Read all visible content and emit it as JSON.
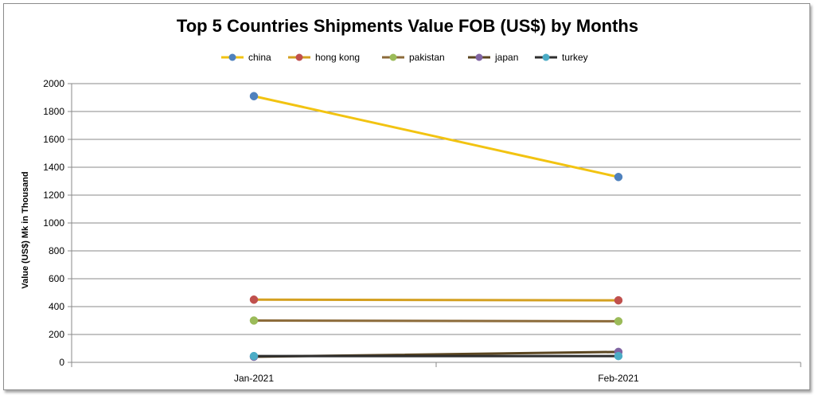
{
  "chart_data": {
    "type": "line",
    "title": "Top 5 Countries Shipments Value FOB (US$) by Months",
    "xlabel": "",
    "ylabel": "Value (US$) Mk in Thousand",
    "categories": [
      "Jan-2021",
      "Feb-2021"
    ],
    "ylim": [
      0,
      2000
    ],
    "yticks": [
      0,
      200,
      400,
      600,
      800,
      1000,
      1200,
      1400,
      1600,
      1800,
      2000
    ],
    "grid": true,
    "legend_position": "top",
    "series": [
      {
        "name": "china",
        "values": [
          1910,
          1330
        ],
        "line_color": "#f2c311",
        "marker_color": "#4f81bd"
      },
      {
        "name": "hong kong",
        "values": [
          450,
          445
        ],
        "line_color": "#d4a020",
        "marker_color": "#c0504d"
      },
      {
        "name": "pakistan",
        "values": [
          300,
          295
        ],
        "line_color": "#8c6b3a",
        "marker_color": "#9bbb59"
      },
      {
        "name": "japan",
        "values": [
          40,
          75
        ],
        "line_color": "#5b4620",
        "marker_color": "#8064a2"
      },
      {
        "name": "turkey",
        "values": [
          45,
          45
        ],
        "line_color": "#2e2e2e",
        "marker_color": "#4bacc6"
      }
    ]
  }
}
